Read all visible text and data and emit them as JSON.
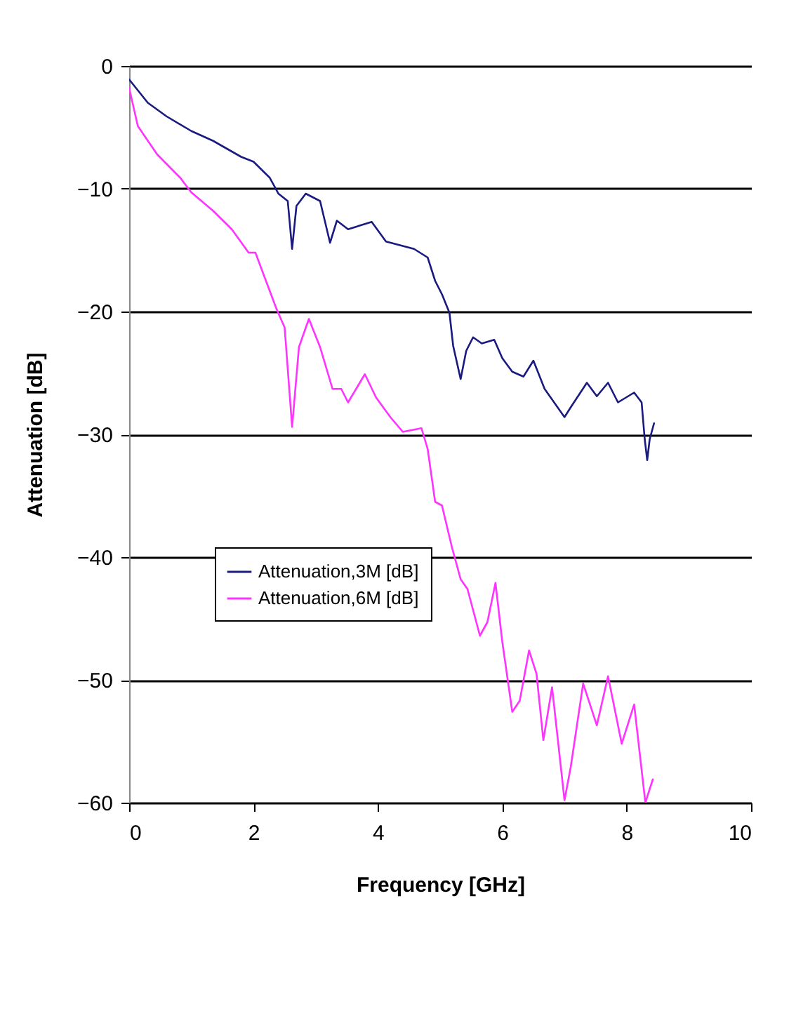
{
  "chart_data": {
    "type": "line",
    "xlabel": "Frequency [GHz]",
    "ylabel": "Attenuation [dB]",
    "xlim": [
      0,
      10
    ],
    "xticks": [
      0,
      2,
      4,
      6,
      8,
      10
    ],
    "ylim": [
      -60,
      0
    ],
    "yticks": [
      -60,
      -50,
      -40,
      -30,
      -20,
      -10,
      0
    ],
    "grid": "y",
    "legend": "bottom left",
    "marker": "none",
    "line_style": "solid",
    "series": [
      {
        "name": "Attenuation,3M [dB]",
        "color": "#1a1a80",
        "x": [
          0,
          0.3,
          0.6,
          1.0,
          1.35,
          1.8,
          2.0,
          2.26,
          2.4,
          2.55,
          2.62,
          2.69,
          2.84,
          3.07,
          3.23,
          3.34,
          3.52,
          3.9,
          4.13,
          4.58,
          4.8,
          4.92,
          5.03,
          5.15,
          5.21,
          5.33,
          5.42,
          5.53,
          5.67,
          5.87,
          6.0,
          6.16,
          6.34,
          6.5,
          6.68,
          7.0,
          7.1,
          7.36,
          7.52,
          7.7,
          7.86,
          8.12,
          8.24,
          8.29,
          8.33,
          8.37,
          8.44
        ],
        "values": [
          -1.1,
          -3,
          -4.1,
          -5.3,
          -6.1,
          -7.4,
          -7.8,
          -9.1,
          -10.4,
          -11,
          -14.9,
          -11.4,
          -10.4,
          -11,
          -14.4,
          -12.6,
          -13.3,
          -12.7,
          -14.3,
          -14.9,
          -15.6,
          -17.5,
          -18.6,
          -20.1,
          -22.8,
          -25.5,
          -23.2,
          -22.1,
          -22.6,
          -22.3,
          -23.8,
          -24.9,
          -25.3,
          -24,
          -26.3,
          -28.6,
          -27.8,
          -25.8,
          -26.9,
          -25.8,
          -27.4,
          -26.6,
          -27.4,
          -30.4,
          -32.1,
          -30.4,
          -29.1
        ]
      },
      {
        "name": "Attenuation,6M [dB]",
        "color": "#ff33ff",
        "x": [
          0,
          0.14,
          0.45,
          0.82,
          1.0,
          1.35,
          1.65,
          1.92,
          2.03,
          2.17,
          2.37,
          2.5,
          2.62,
          2.73,
          2.89,
          3.07,
          3.27,
          3.41,
          3.52,
          3.79,
          3.97,
          4.2,
          4.4,
          4.7,
          4.8,
          4.92,
          5.03,
          5.19,
          5.33,
          5.44,
          5.64,
          5.76,
          5.89,
          6.0,
          6.16,
          6.28,
          6.43,
          6.55,
          6.66,
          6.8,
          7.0,
          7.1,
          7.3,
          7.52,
          7.7,
          7.92,
          8.12,
          8.3,
          8.42
        ],
        "values": [
          -1.8,
          -4.9,
          -7.2,
          -9.1,
          -10.3,
          -11.8,
          -13.3,
          -15.2,
          -15.2,
          -17.1,
          -19.8,
          -21.3,
          -29.4,
          -22.9,
          -20.6,
          -22.9,
          -26.3,
          -26.3,
          -27.4,
          -25.1,
          -27,
          -28.6,
          -29.8,
          -29.5,
          -31.2,
          -35.5,
          -35.8,
          -39.2,
          -41.8,
          -42.6,
          -46.4,
          -45.3,
          -42.1,
          -46.9,
          -52.6,
          -51.7,
          -47.6,
          -49.5,
          -54.9,
          -50.6,
          -59.8,
          -57.1,
          -50.3,
          -53.7,
          -49.7,
          -55.2,
          -52,
          -60,
          -58.1
        ]
      }
    ]
  }
}
